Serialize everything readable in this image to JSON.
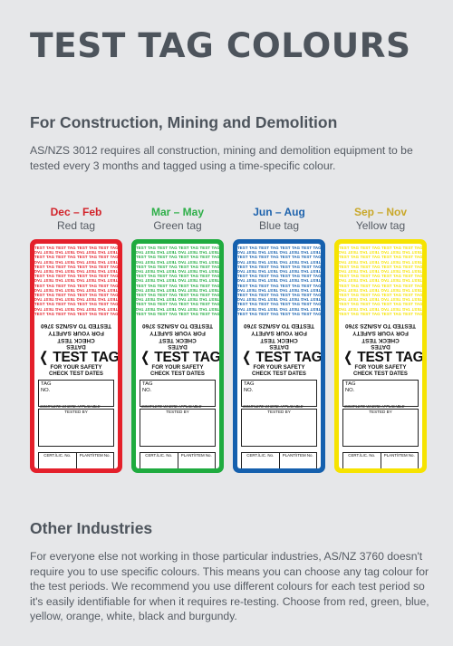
{
  "title": "TEST TAG COLOURS",
  "section1": {
    "heading": "For Construction, Mining and Demolition",
    "text": "AS/NZS 3012 requires all construction, mining and demolition equipment to be tested every 3 months and tagged using a time-specific colour."
  },
  "tags": [
    {
      "season": "Dec – Feb",
      "name": "Red tag",
      "color": "#e4202b",
      "label_color": "#d2232a"
    },
    {
      "season": "Mar – May",
      "name": "Green tag",
      "color": "#1fab3f",
      "label_color": "#2eaf49"
    },
    {
      "season": "Jun – Aug",
      "name": "Blue tag",
      "color": "#1560ae",
      "label_color": "#1e63ad"
    },
    {
      "season": "Sep – Nov",
      "name": "Yellow tag",
      "color": "#f6e300",
      "label_color": "#c9a82a"
    }
  ],
  "tag_card": {
    "pattern_text": "TEST TAG TEST TAG TEST TAG TEST TAG TEST",
    "tested_to": "TESTED TO AS/NZS 3760",
    "check_line1": "CHECK TEST",
    "check_line2": "DATES",
    "for_safety_upside": "FOR YOUR SAFETY",
    "chevron_left": "❬",
    "main": "TEST TAG",
    "chevron_right": "❭",
    "for_safety": "FOR YOUR SAFETY",
    "check_dates": "CHECK TEST DATES",
    "tag_label": "TAG",
    "no_label": "NO.",
    "complete": "COMPLETE WHERE APPLICABLE",
    "tested_by": "TESTED BY",
    "cert": "CERT./LIC. No.",
    "plant": "PLANT/ITEM No.",
    "test_date": "TEST DATE",
    "next_due": "NEXT TEST DUE",
    "slashes": "/ /"
  },
  "section2": {
    "heading": "Other Industries",
    "text": "For everyone else not working in those particular industries, AS/NZ 3760 doesn't require you to use specific colours. This means you can choose any tag colour for the test periods. We recommend you use different colours for each test period so it's easily identifiable for when it requires re-testing. Choose from red, green, blue, yellow, orange, white, black and burgundy."
  }
}
